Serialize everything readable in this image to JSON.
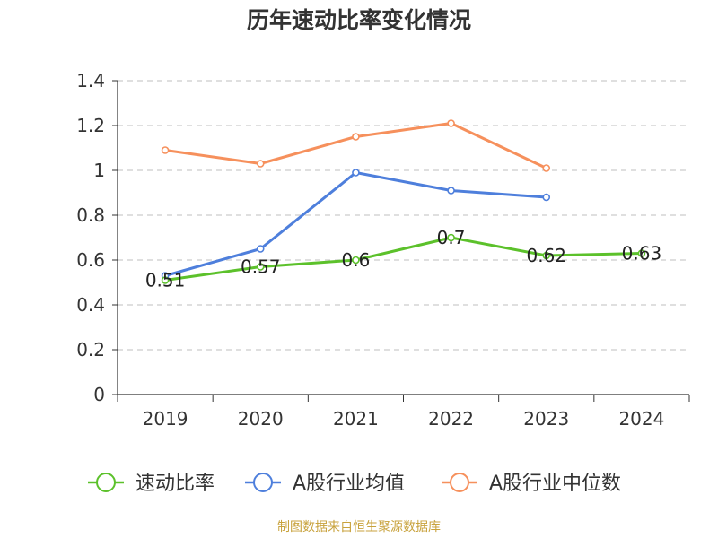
{
  "title": "历年速动比率变化情况",
  "source": "制图数据来自恒生聚源数据库",
  "chart_data": {
    "type": "line",
    "title": "历年速动比率变化情况",
    "xlabel": "",
    "ylabel": "",
    "categories": [
      "2019",
      "2020",
      "2021",
      "2022",
      "2023",
      "2024"
    ],
    "ylim": [
      0,
      1.4
    ],
    "yticks": [
      0,
      0.2,
      0.4,
      0.6,
      0.8,
      1,
      1.2,
      1.4
    ],
    "ytick_labels": [
      "0",
      "0.2",
      "0.4",
      "0.6",
      "0.8",
      "1",
      "1.2",
      "1.4"
    ],
    "grid": true,
    "legend_position": "bottom",
    "series": [
      {
        "name": "速动比率",
        "color": "#5cc12b",
        "values": [
          0.51,
          0.57,
          0.6,
          0.7,
          0.62,
          0.63
        ],
        "labels": [
          "0.51",
          "0.57",
          "0.6",
          "0.7",
          "0.62",
          "0.63"
        ]
      },
      {
        "name": "A股行业均值",
        "color": "#4e7fdc",
        "values": [
          0.53,
          0.65,
          0.99,
          0.91,
          0.88,
          null
        ]
      },
      {
        "name": "A股行业中位数",
        "color": "#f6905c",
        "values": [
          1.09,
          1.03,
          1.15,
          1.21,
          1.01,
          null
        ]
      }
    ]
  }
}
